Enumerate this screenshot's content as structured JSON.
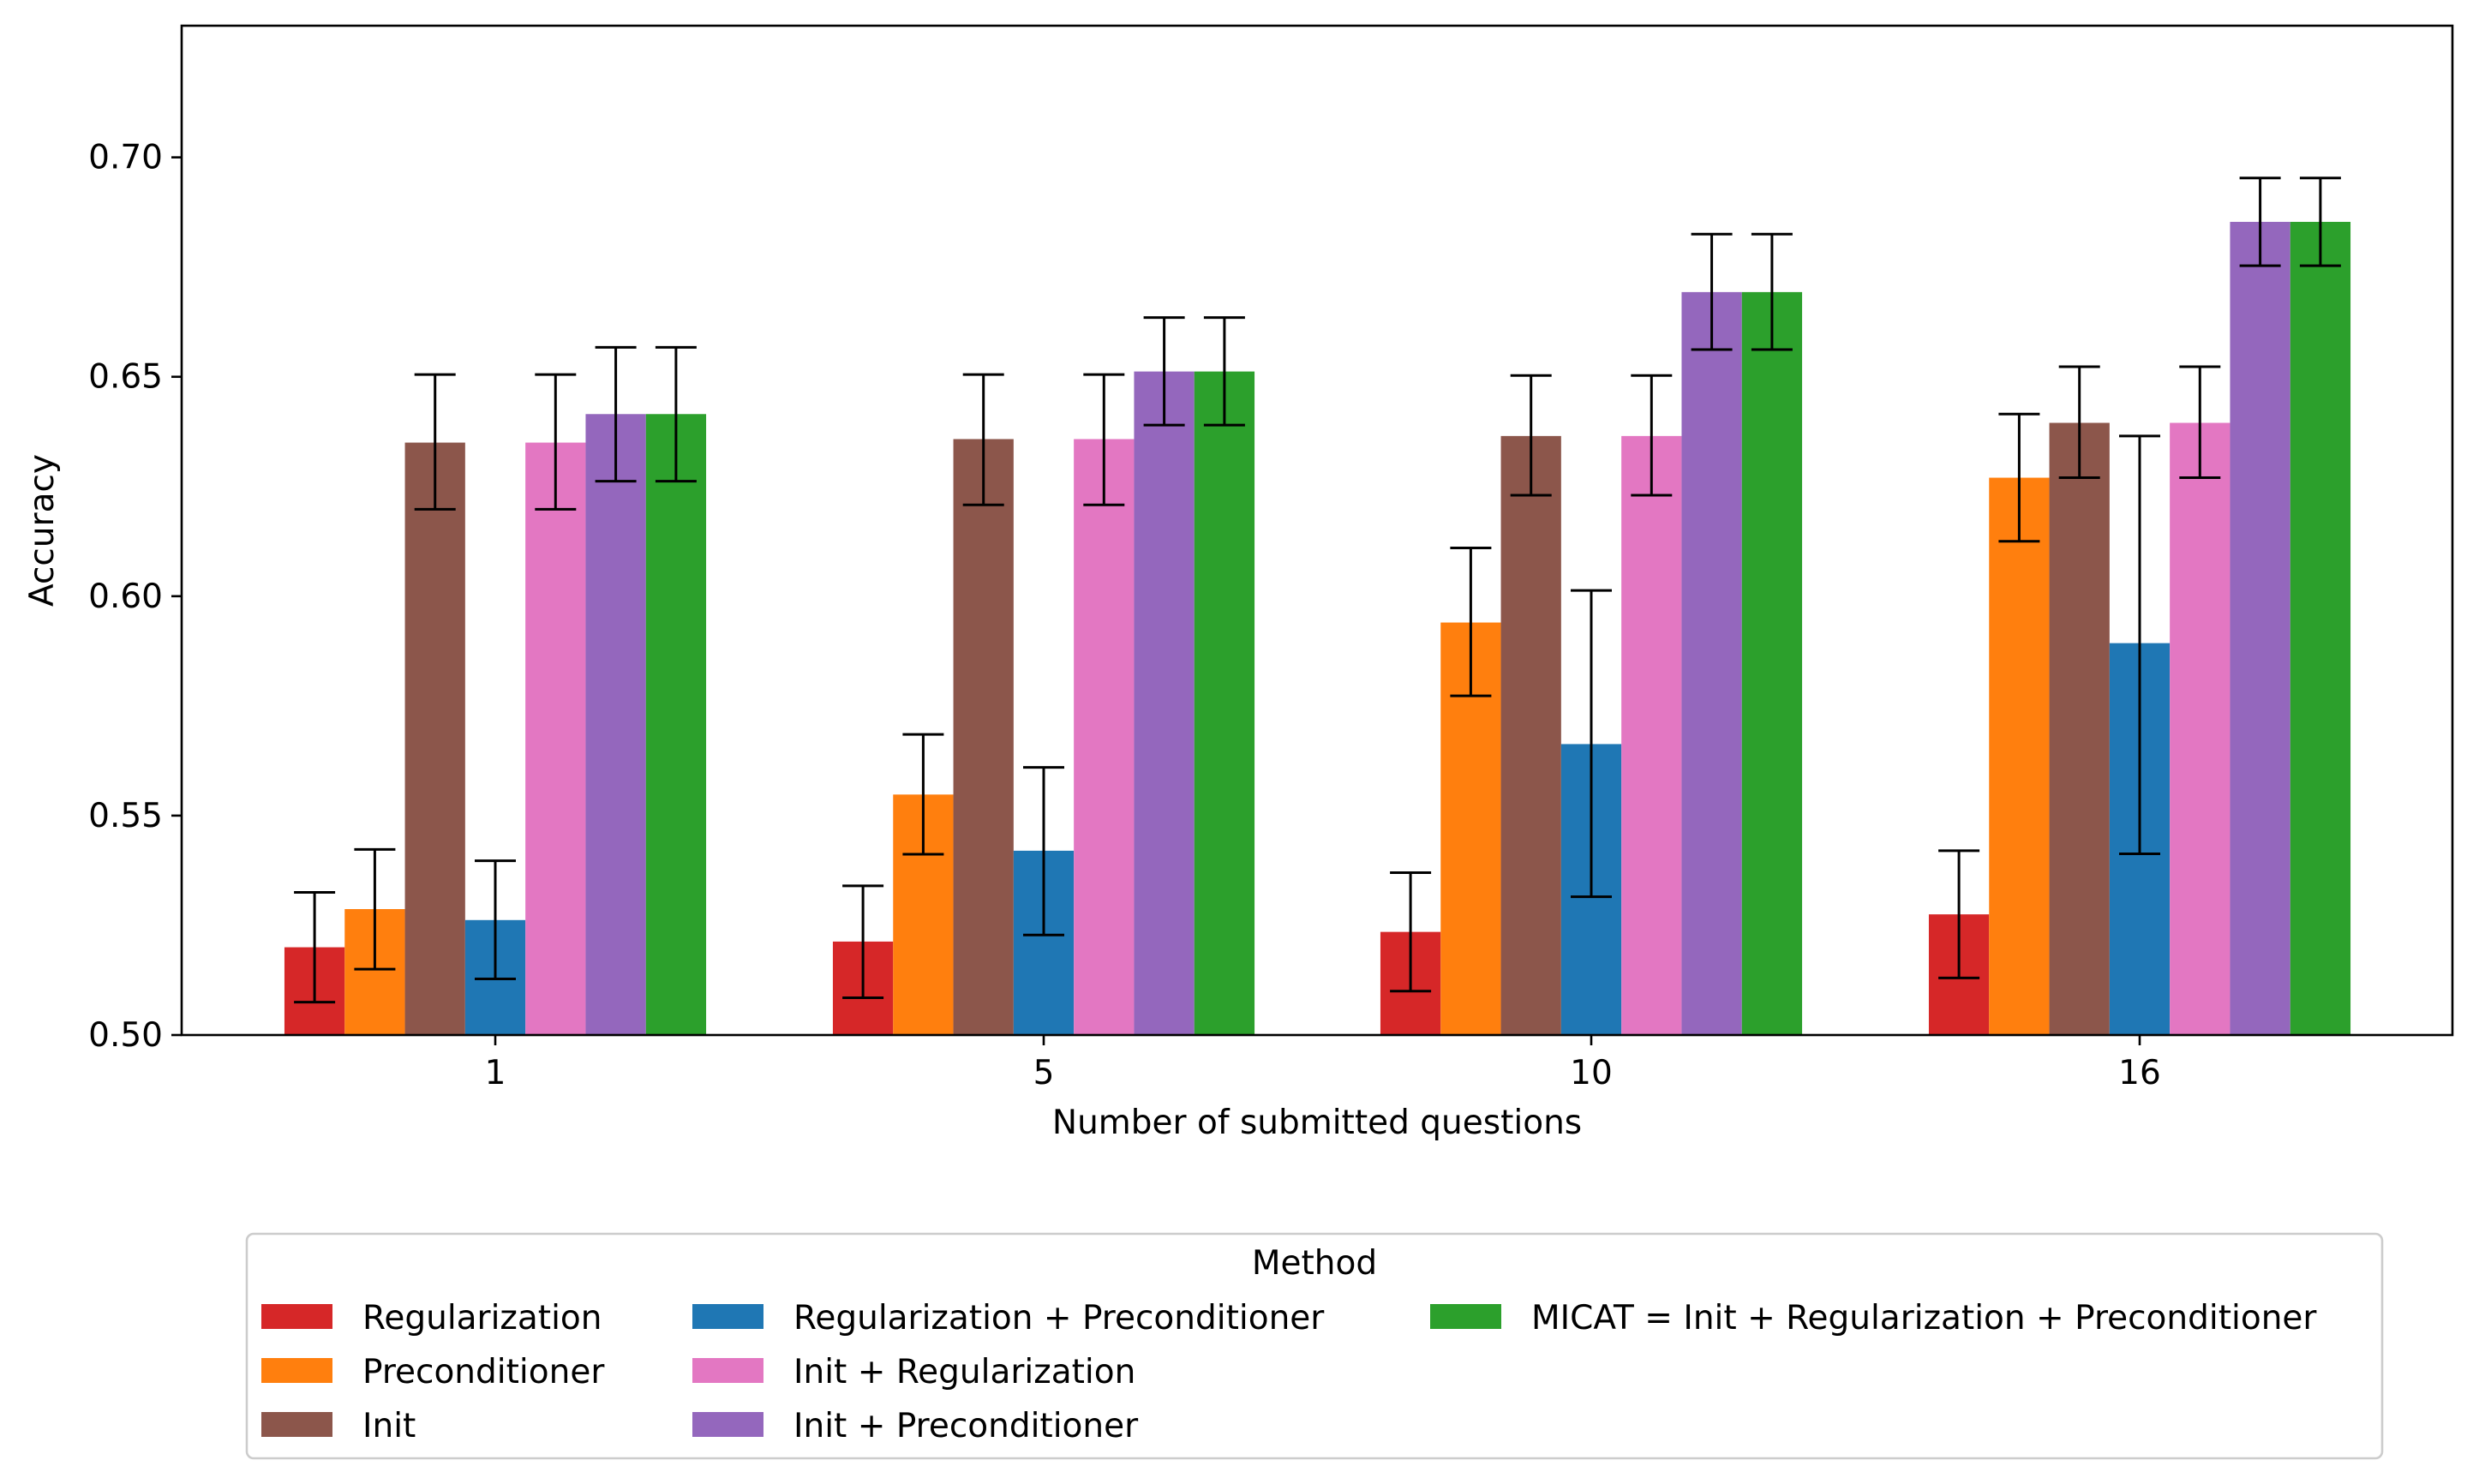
{
  "chart_data": {
    "type": "bar",
    "xlabel": "Number of submitted questions",
    "ylabel": "Accuracy",
    "categories": [
      "1",
      "5",
      "10",
      "16"
    ],
    "ylim": [
      0.5,
      0.73
    ],
    "yticks": [
      "0.50",
      "0.55",
      "0.60",
      "0.65",
      "0.70"
    ],
    "grid": false,
    "legend": {
      "title": "Method",
      "placement": "bottom-center, outside plot, 3 columns"
    },
    "series": [
      {
        "name": "Regularization",
        "color": "#d62728",
        "values": [
          0.52,
          0.5213,
          0.5235,
          0.5275
        ],
        "err_low": [
          0.5075,
          0.5085,
          0.51,
          0.513
        ],
        "err_high": [
          0.5325,
          0.534,
          0.537,
          0.542
        ]
      },
      {
        "name": "Preconditioner",
        "color": "#ff7f0e",
        "values": [
          0.5287,
          0.5548,
          0.594,
          0.627
        ],
        "err_low": [
          0.515,
          0.5412,
          0.5773,
          0.6125
        ],
        "err_high": [
          0.5423,
          0.5685,
          0.611,
          0.6415
        ]
      },
      {
        "name": "Init",
        "color": "#8c564b",
        "values": [
          0.635,
          0.6358,
          0.6365,
          0.6395
        ],
        "err_low": [
          0.6198,
          0.6208,
          0.623,
          0.627
        ],
        "err_high": [
          0.6505,
          0.6505,
          0.6503,
          0.6523
        ]
      },
      {
        "name": "Regularization + Preconditioner",
        "color": "#1f77b4",
        "values": [
          0.5262,
          0.542,
          0.5663,
          0.5893
        ],
        "err_low": [
          0.5128,
          0.5228,
          0.5315,
          0.5413
        ],
        "err_high": [
          0.5397,
          0.561,
          0.6013,
          0.6365
        ]
      },
      {
        "name": "Init + Regularization",
        "color": "#e377c2",
        "values": [
          0.635,
          0.6358,
          0.6365,
          0.6395
        ],
        "err_low": [
          0.6198,
          0.6208,
          0.623,
          0.627
        ],
        "err_high": [
          0.6505,
          0.6505,
          0.6503,
          0.6523
        ]
      },
      {
        "name": "Init + Preconditioner",
        "color": "#9467bd",
        "values": [
          0.6415,
          0.6512,
          0.6693,
          0.6853
        ],
        "err_low": [
          0.6262,
          0.639,
          0.6562,
          0.6753
        ],
        "err_high": [
          0.6567,
          0.6635,
          0.6825,
          0.6953
        ]
      },
      {
        "name": "MICAT = Init + Regularization + Preconditioner",
        "color": "#2ca02c",
        "values": [
          0.6415,
          0.6512,
          0.6693,
          0.6853
        ],
        "err_low": [
          0.6262,
          0.639,
          0.6562,
          0.6753
        ],
        "err_high": [
          0.6567,
          0.6635,
          0.6825,
          0.6953
        ]
      }
    ]
  }
}
